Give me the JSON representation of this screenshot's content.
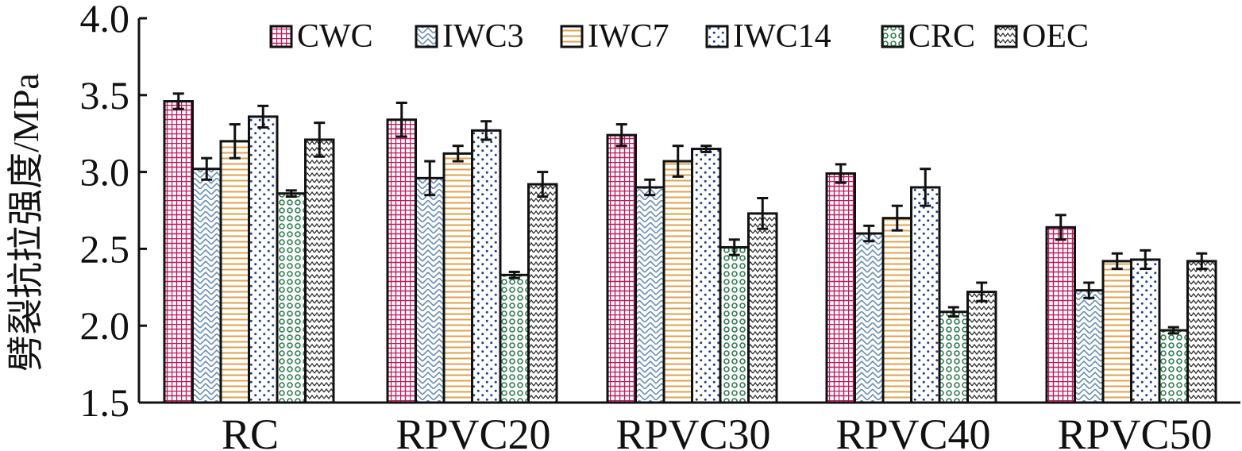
{
  "chart_data": {
    "type": "bar",
    "ylabel": "劈裂抗拉强度/MPa",
    "xlabel": "",
    "ylim": [
      1.5,
      4.0
    ],
    "yticks": [
      "1.5",
      "2.0",
      "2.5",
      "3.0",
      "3.5",
      "4.0"
    ],
    "categories": [
      "RC",
      "RPVC20",
      "RPVC30",
      "RPVC40",
      "RPVC50"
    ],
    "legend_position": "top",
    "grid": false,
    "series": [
      {
        "name": "CWC",
        "color": "#c2185b",
        "pattern": "grid",
        "values": [
          3.46,
          3.34,
          3.24,
          2.99,
          2.64
        ],
        "errors": [
          0.05,
          0.11,
          0.07,
          0.06,
          0.08
        ]
      },
      {
        "name": "IWC3",
        "color": "#6a8fb8",
        "pattern": "herringbone",
        "values": [
          3.02,
          2.96,
          2.9,
          2.6,
          2.23
        ],
        "errors": [
          0.07,
          0.11,
          0.05,
          0.05,
          0.05
        ]
      },
      {
        "name": "IWC7",
        "color": "#e0a24a",
        "pattern": "hlines",
        "values": [
          3.2,
          3.12,
          3.07,
          2.7,
          2.42
        ],
        "errors": [
          0.11,
          0.05,
          0.1,
          0.08,
          0.05
        ]
      },
      {
        "name": "IWC14",
        "color": "#1f3d8a",
        "pattern": "dots",
        "values": [
          3.36,
          3.27,
          3.15,
          2.9,
          2.43
        ],
        "errors": [
          0.07,
          0.06,
          0.02,
          0.12,
          0.06
        ]
      },
      {
        "name": "CRC",
        "color": "#2e7d4f",
        "pattern": "rings",
        "values": [
          2.86,
          2.33,
          2.51,
          2.09,
          1.97
        ],
        "errors": [
          0.02,
          0.02,
          0.05,
          0.03,
          0.02
        ]
      },
      {
        "name": "OEC",
        "color": "#333333",
        "pattern": "zigzag",
        "values": [
          3.21,
          2.92,
          2.73,
          2.22,
          2.42
        ],
        "errors": [
          0.11,
          0.08,
          0.1,
          0.06,
          0.05
        ]
      }
    ]
  }
}
